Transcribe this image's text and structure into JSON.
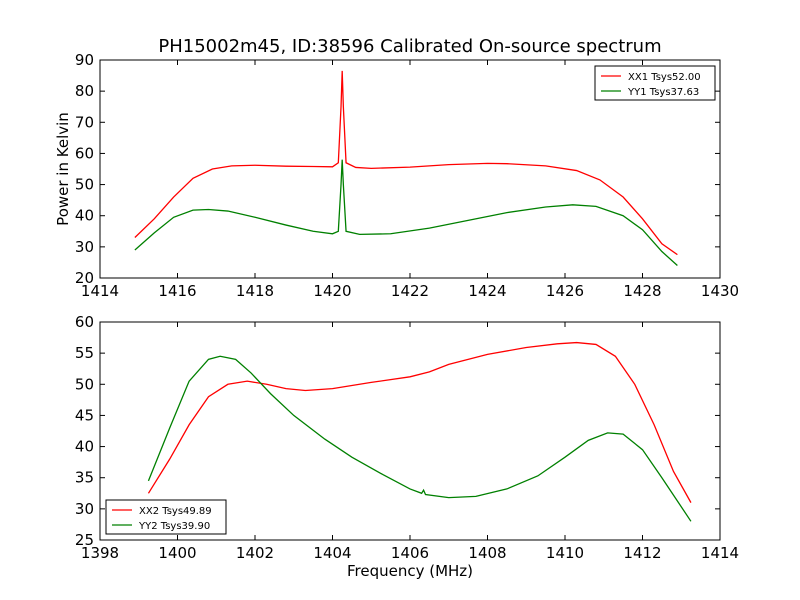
{
  "title": "PH15002m45, ID:38596 Calibrated On-source spectrum",
  "chart_data": [
    {
      "type": "line",
      "ylabel": "Power in Kelvin",
      "xlabel": "",
      "xlim": [
        1414,
        1430
      ],
      "ylim": [
        20,
        90
      ],
      "xticks": [
        "1414",
        "1416",
        "1418",
        "1420",
        "1422",
        "1424",
        "1426",
        "1428",
        "1430"
      ],
      "yticks": [
        "20",
        "30",
        "40",
        "50",
        "60",
        "70",
        "80",
        "90"
      ],
      "legend_position": "top-right",
      "series": [
        {
          "name": "XX1 Tsys52.00",
          "color": "#ff0000",
          "x": [
            1414.9,
            1415.4,
            1415.9,
            1416.4,
            1416.9,
            1417.4,
            1418.0,
            1418.8,
            1419.5,
            1420.0,
            1420.15,
            1420.22,
            1420.25,
            1420.28,
            1420.35,
            1420.6,
            1421.0,
            1422.0,
            1423.0,
            1424.0,
            1424.5,
            1425.5,
            1426.3,
            1426.9,
            1427.5,
            1428.0,
            1428.5,
            1428.9
          ],
          "y": [
            33,
            39,
            46,
            52,
            55,
            56,
            56.2,
            55.9,
            55.8,
            55.7,
            57,
            75,
            86.5,
            75,
            57,
            55.5,
            55.2,
            55.6,
            56.4,
            56.8,
            56.7,
            56,
            54.5,
            51.5,
            46,
            39,
            31,
            27.5
          ]
        },
        {
          "name": "YY1 Tsys37.63",
          "color": "#008000",
          "x": [
            1414.9,
            1415.4,
            1415.9,
            1416.4,
            1416.8,
            1417.3,
            1418.0,
            1418.8,
            1419.5,
            1420.0,
            1420.15,
            1420.22,
            1420.25,
            1420.28,
            1420.35,
            1420.7,
            1421.5,
            1422.5,
            1423.5,
            1424.5,
            1425.5,
            1426.2,
            1426.8,
            1427.5,
            1428.0,
            1428.5,
            1428.9
          ],
          "y": [
            29,
            34.5,
            39.5,
            41.8,
            42,
            41.5,
            39.5,
            37,
            35,
            34.2,
            35,
            50,
            58,
            50,
            35,
            34,
            34.2,
            36,
            38.5,
            41,
            42.8,
            43.5,
            43,
            40,
            35.5,
            28.5,
            24
          ]
        }
      ]
    },
    {
      "type": "line",
      "ylabel": "",
      "xlabel": "Frequency (MHz)",
      "xlim": [
        1398,
        1414
      ],
      "ylim": [
        25,
        60
      ],
      "xticks": [
        "1398",
        "1400",
        "1402",
        "1404",
        "1406",
        "1408",
        "1410",
        "1412",
        "1414"
      ],
      "yticks": [
        "25",
        "30",
        "35",
        "40",
        "45",
        "50",
        "55",
        "60"
      ],
      "legend_position": "bottom-left",
      "series": [
        {
          "name": "XX2 Tsys49.89",
          "color": "#ff0000",
          "x": [
            1399.25,
            1399.8,
            1400.3,
            1400.8,
            1401.3,
            1401.8,
            1402.3,
            1402.8,
            1403.3,
            1404.0,
            1405.0,
            1406.0,
            1406.5,
            1407.0,
            1408.0,
            1409.0,
            1409.8,
            1410.3,
            1410.8,
            1411.3,
            1411.8,
            1412.3,
            1412.8,
            1413.25
          ],
          "y": [
            32.5,
            38,
            43.5,
            48,
            50,
            50.5,
            50,
            49.3,
            49,
            49.3,
            50.3,
            51.2,
            52,
            53.2,
            54.8,
            55.9,
            56.5,
            56.7,
            56.4,
            54.5,
            50,
            43.5,
            36,
            31
          ]
        },
        {
          "name": "YY2 Tsys39.90",
          "color": "#008000",
          "x": [
            1399.25,
            1399.8,
            1400.3,
            1400.8,
            1401.1,
            1401.5,
            1401.9,
            1402.4,
            1403.0,
            1403.8,
            1404.5,
            1405.3,
            1406.0,
            1406.3,
            1406.35,
            1406.4,
            1407.0,
            1407.7,
            1408.5,
            1409.3,
            1410.0,
            1410.6,
            1411.1,
            1411.5,
            1412.0,
            1412.5,
            1413.25
          ],
          "y": [
            34.5,
            43,
            50.5,
            54,
            54.5,
            54,
            51.8,
            48.5,
            45,
            41.2,
            38.3,
            35.5,
            33.2,
            32.5,
            33,
            32.3,
            31.8,
            32,
            33.2,
            35.3,
            38.3,
            41,
            42.2,
            42,
            39.5,
            35,
            28
          ]
        }
      ]
    }
  ]
}
